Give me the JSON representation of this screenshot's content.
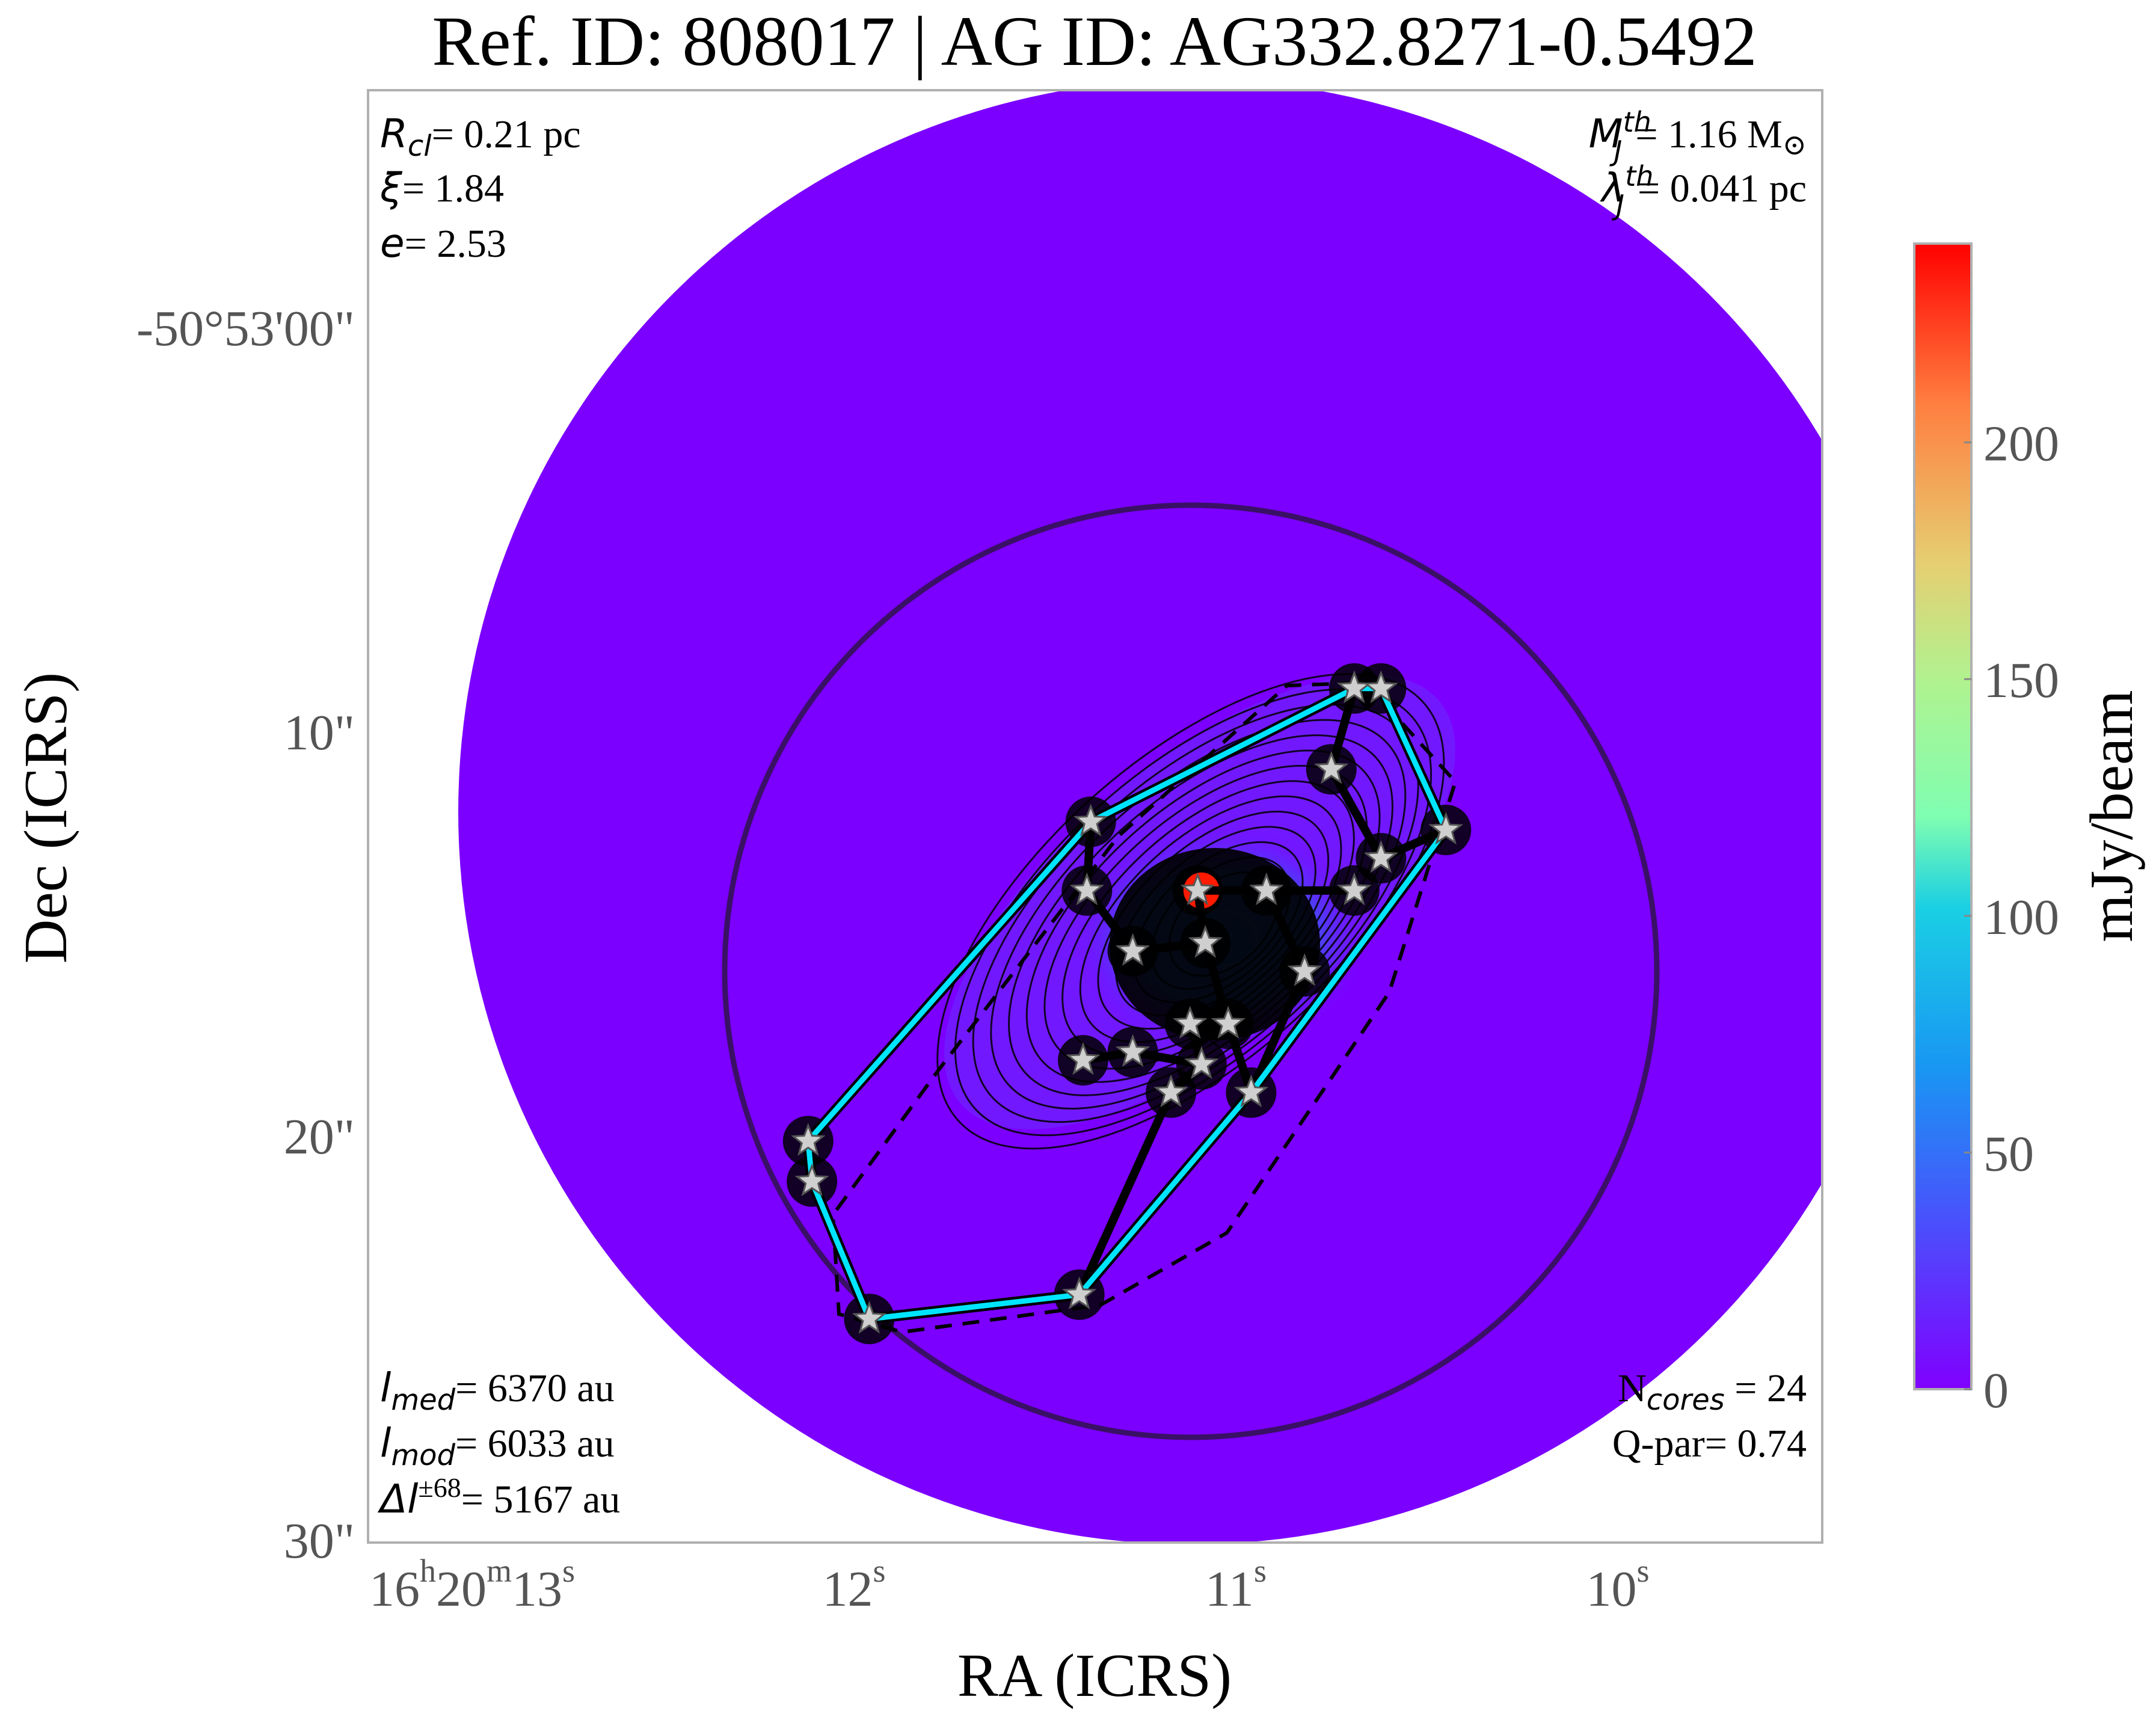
{
  "title": "Ref. ID: 808017 | AG ID: AG332.8271-0.5492",
  "xlabel": "RA (ICRS)",
  "ylabel": "Dec (ICRS)",
  "colorbar": {
    "label": "mJy/beam",
    "ticks": [
      "0",
      "50",
      "100",
      "150",
      "200"
    ],
    "tick_values": [
      0,
      50,
      100,
      150,
      200
    ],
    "vmin": 0,
    "vmax": 242,
    "colormap": "rainbow"
  },
  "ra_ticks": [
    {
      "value_s": 13.0,
      "parts": [
        "16",
        "h",
        "20",
        "m",
        "13",
        "s"
      ]
    },
    {
      "value_s": 12.0,
      "parts": [
        "12",
        "s"
      ]
    },
    {
      "value_s": 11.0,
      "parts": [
        "11",
        "s"
      ]
    },
    {
      "value_s": 10.0,
      "parts": [
        "10",
        "s"
      ]
    }
  ],
  "dec_ticks": [
    {
      "value_arcsec": 0,
      "label": "-50°53'00\""
    },
    {
      "value_arcsec": 10,
      "label": "10\""
    },
    {
      "value_arcsec": 20,
      "label": "20\""
    },
    {
      "value_arcsec": 30,
      "label": "30\""
    }
  ],
  "annotations": {
    "top_left": [
      {
        "sym": "R",
        "sub": "cl",
        "val": "= 0.21 pc"
      },
      {
        "sym": "ξ",
        "sub": "",
        "val": "= 1.84"
      },
      {
        "sym": "e",
        "sub": "",
        "val": "= 2.53"
      }
    ],
    "top_right": [
      {
        "sym": "M",
        "sub": "J",
        "sup": "th",
        "val": "= 1.16 M",
        "tail": "⊙"
      },
      {
        "sym": "λ",
        "sub": "J",
        "sup": "th",
        "val": "= 0.041 pc",
        "tail": ""
      }
    ],
    "bottom_left": [
      {
        "sym": "l",
        "sub": "med",
        "sup": "",
        "val": "= 6370 au"
      },
      {
        "sym": "l",
        "sub": "mod",
        "sup": "",
        "val": "= 6033 au"
      },
      {
        "sym": "Δl",
        "sub": "",
        "sup": "±68",
        "val": "= 5167 au"
      }
    ],
    "bottom_right": [
      {
        "pre": "N",
        "sub": "cores",
        "val": " = 24"
      },
      {
        "pre": "Q-par",
        "sub": "",
        "val": "= 0.74"
      }
    ]
  },
  "colors": {
    "background_map": "#7b00ff",
    "hull": "#00e5ff",
    "mst": "#000000",
    "star": "#cfcfcf",
    "peak": "#ff1a00",
    "circle": "#3a1066"
  },
  "chart_data": {
    "type": "heatmap",
    "units": "mJy/beam",
    "cores": [
      {
        "ra_s": 10.69,
        "dec_arcsec": 9.0
      },
      {
        "ra_s": 10.62,
        "dec_arcsec": 9.0
      },
      {
        "ra_s": 10.75,
        "dec_arcsec": 11.0
      },
      {
        "ra_s": 10.45,
        "dec_arcsec": 12.5
      },
      {
        "ra_s": 10.62,
        "dec_arcsec": 13.2
      },
      {
        "ra_s": 10.69,
        "dec_arcsec": 14.0
      },
      {
        "ra_s": 10.92,
        "dec_arcsec": 14.0
      },
      {
        "ra_s": 11.1,
        "dec_arcsec": 14.0
      },
      {
        "ra_s": 11.38,
        "dec_arcsec": 12.3
      },
      {
        "ra_s": 11.39,
        "dec_arcsec": 14.0
      },
      {
        "ra_s": 11.08,
        "dec_arcsec": 15.3
      },
      {
        "ra_s": 11.27,
        "dec_arcsec": 15.5
      },
      {
        "ra_s": 10.82,
        "dec_arcsec": 16.0
      },
      {
        "ra_s": 11.12,
        "dec_arcsec": 17.3
      },
      {
        "ra_s": 11.02,
        "dec_arcsec": 17.3
      },
      {
        "ra_s": 11.4,
        "dec_arcsec": 18.2
      },
      {
        "ra_s": 11.27,
        "dec_arcsec": 18.0
      },
      {
        "ra_s": 11.09,
        "dec_arcsec": 18.3
      },
      {
        "ra_s": 11.17,
        "dec_arcsec": 19.0
      },
      {
        "ra_s": 10.96,
        "dec_arcsec": 19.0
      },
      {
        "ra_s": 12.12,
        "dec_arcsec": 20.2
      },
      {
        "ra_s": 12.11,
        "dec_arcsec": 21.2
      },
      {
        "ra_s": 11.41,
        "dec_arcsec": 24.0
      },
      {
        "ra_s": 11.96,
        "dec_arcsec": 24.6
      }
    ],
    "hull_order": [
      1,
      3,
      19,
      22,
      23,
      21,
      20,
      8,
      0
    ],
    "mst_edges": [
      [
        1,
        0
      ],
      [
        0,
        2
      ],
      [
        2,
        4
      ],
      [
        4,
        3
      ],
      [
        5,
        6
      ],
      [
        6,
        7
      ],
      [
        7,
        10
      ],
      [
        10,
        11
      ],
      [
        11,
        9
      ],
      [
        9,
        8
      ],
      [
        10,
        14
      ],
      [
        14,
        13
      ],
      [
        13,
        17
      ],
      [
        17,
        16
      ],
      [
        16,
        15
      ],
      [
        17,
        18
      ],
      [
        18,
        22
      ],
      [
        14,
        19
      ],
      [
        19,
        12
      ],
      [
        12,
        6
      ],
      [
        20,
        21
      ],
      [
        21,
        23
      ]
    ],
    "peak": {
      "ra_s": 11.09,
      "dec_arcsec": 14.0,
      "value": 242
    },
    "inner_circle": {
      "center_ra_s": 11.14,
      "center_dec_arcsec": 16.2,
      "radius_arcsec": 11.5
    },
    "field_circle": {
      "center_ra_s": 11.14,
      "center_dec_arcsec": 16.2,
      "radius_arcsec": 22.0
    }
  }
}
